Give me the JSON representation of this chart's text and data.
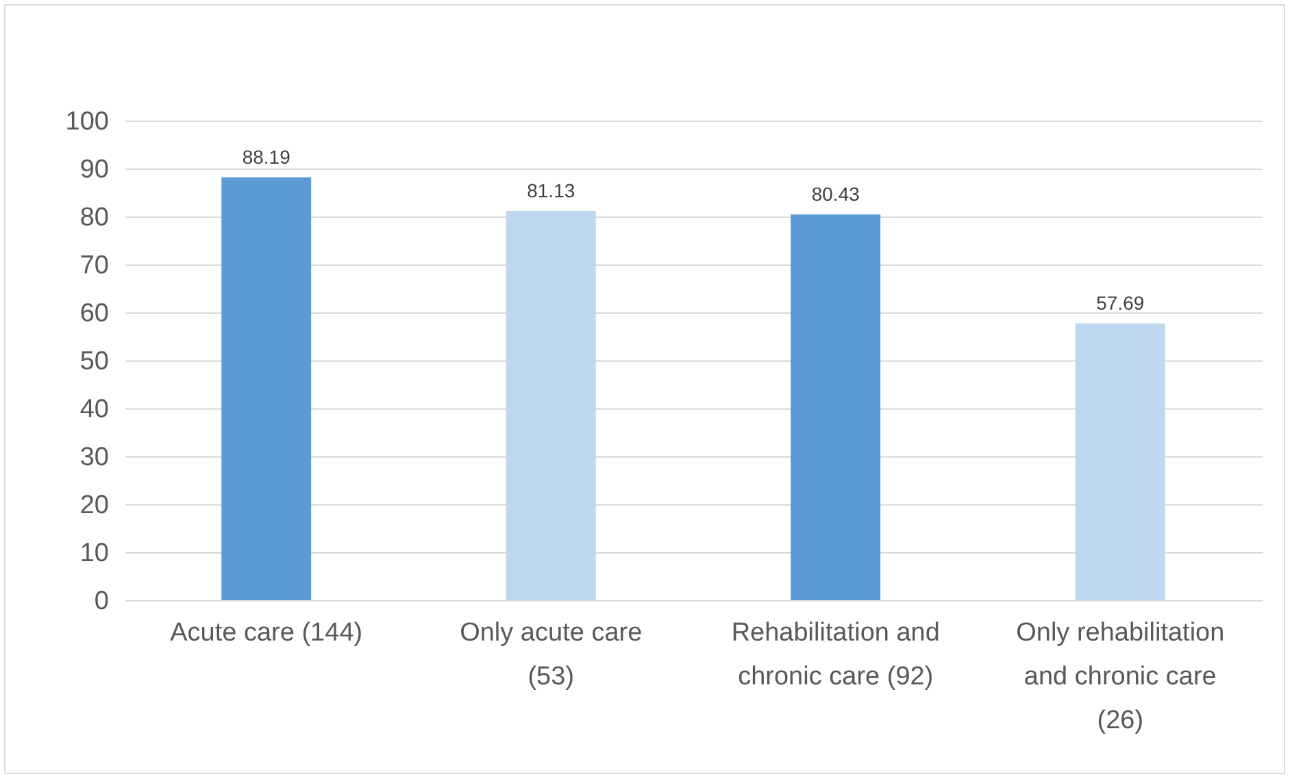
{
  "chart_data": {
    "type": "bar",
    "categories": [
      "Acute care (144)",
      "Only acute care (53)",
      "Rehabilitation and chronic care (92)",
      "Only rehabilitation and chronic care (26)"
    ],
    "values": [
      88.19,
      81.13,
      80.43,
      57.69
    ],
    "colors": [
      "#5b9bd5",
      "#bdd7ee",
      "#5b9bd5",
      "#bdd7ee"
    ],
    "ylim": [
      0,
      100
    ],
    "yticks": [
      0,
      10,
      20,
      30,
      40,
      50,
      60,
      70,
      80,
      90,
      100
    ],
    "grid": "y",
    "data_labels": true
  }
}
